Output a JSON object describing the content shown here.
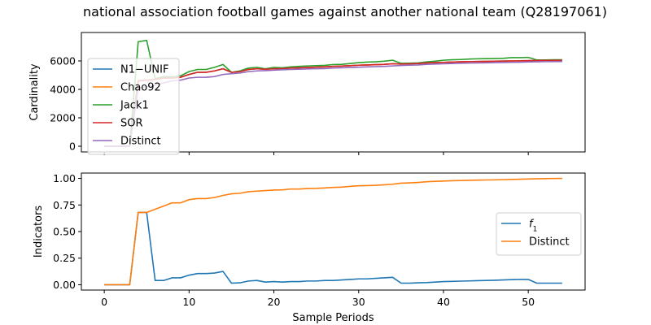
{
  "figure": {
    "title": "national association football games against another national team (Q28197061)",
    "xlabel": "Sample Periods"
  },
  "chart_data": [
    {
      "type": "line",
      "ylabel": "Cardinality",
      "xlim": [
        -2.7,
        56.7
      ],
      "ylim": [
        -400,
        8000
      ],
      "xticks": [
        0,
        10,
        20,
        30,
        40,
        50
      ],
      "yticks": [
        0,
        2000,
        4000,
        6000
      ],
      "legend": "upper-left",
      "x": [
        0,
        1,
        2,
        3,
        4,
        5,
        6,
        7,
        8,
        9,
        10,
        11,
        12,
        13,
        14,
        15,
        16,
        17,
        18,
        19,
        20,
        21,
        22,
        23,
        24,
        25,
        26,
        27,
        28,
        29,
        30,
        31,
        32,
        33,
        34,
        35,
        36,
        37,
        38,
        39,
        40,
        41,
        42,
        43,
        44,
        45,
        46,
        47,
        48,
        49,
        50,
        51,
        52,
        53,
        54
      ],
      "series": [
        {
          "name": "N1−UNIF",
          "color": "#1f77b4",
          "values": [
            0,
            0,
            0,
            0,
            4600,
            4650,
            4700,
            4800,
            4800,
            4850,
            5050,
            5200,
            5200,
            5300,
            5450,
            5200,
            5250,
            5400,
            5450,
            5420,
            5450,
            5460,
            5500,
            5520,
            5540,
            5560,
            5580,
            5620,
            5640,
            5670,
            5700,
            5720,
            5740,
            5760,
            5800,
            5780,
            5800,
            5820,
            5860,
            5880,
            5900,
            5920,
            5940,
            5950,
            5960,
            5970,
            5980,
            5990,
            6000,
            6010,
            6020,
            6030,
            6040,
            6040,
            6050
          ]
        },
        {
          "name": "Chao92",
          "color": "#ff7f0e",
          "values": [
            0,
            0,
            0,
            0,
            4600,
            4650,
            4700,
            4800,
            4800,
            4850,
            5050,
            5200,
            5200,
            5300,
            5450,
            5200,
            5250,
            5400,
            5450,
            5420,
            5450,
            5460,
            5500,
            5520,
            5540,
            5560,
            5580,
            5620,
            5640,
            5670,
            5700,
            5720,
            5740,
            5760,
            5800,
            5780,
            5800,
            5820,
            5860,
            5880,
            5900,
            5920,
            5940,
            5950,
            5960,
            5970,
            5980,
            5990,
            6000,
            6010,
            6020,
            6030,
            6040,
            6040,
            6050
          ]
        },
        {
          "name": "Jack1",
          "color": "#2ca02c",
          "values": [
            0,
            0,
            0,
            0,
            7350,
            7450,
            4750,
            4900,
            4900,
            4950,
            5250,
            5400,
            5400,
            5550,
            5750,
            5200,
            5300,
            5500,
            5550,
            5450,
            5550,
            5520,
            5580,
            5620,
            5650,
            5670,
            5690,
            5750,
            5760,
            5820,
            5880,
            5920,
            5940,
            5980,
            6050,
            5830,
            5840,
            5860,
            5930,
            5980,
            6050,
            6080,
            6100,
            6130,
            6150,
            6160,
            6170,
            6180,
            6230,
            6230,
            6250,
            6070,
            6070,
            6080,
            6080
          ]
        },
        {
          "name": "SOR",
          "color": "#d62728",
          "values": [
            0,
            0,
            0,
            0,
            4600,
            4650,
            4700,
            4800,
            4800,
            4850,
            5050,
            5200,
            5200,
            5300,
            5450,
            5200,
            5250,
            5400,
            5450,
            5420,
            5450,
            5460,
            5500,
            5520,
            5540,
            5560,
            5580,
            5620,
            5640,
            5670,
            5700,
            5720,
            5740,
            5760,
            5800,
            5780,
            5800,
            5820,
            5860,
            5880,
            5900,
            5920,
            5940,
            5950,
            5960,
            5970,
            5980,
            5990,
            6000,
            6010,
            6020,
            6030,
            6040,
            6040,
            6050
          ]
        },
        {
          "name": "Distinct",
          "color": "#9467bd",
          "values": [
            0,
            0,
            0,
            0,
            4100,
            4200,
            4300,
            4450,
            4600,
            4650,
            4800,
            4850,
            4850,
            4900,
            5050,
            5100,
            5150,
            5250,
            5300,
            5320,
            5350,
            5380,
            5400,
            5420,
            5440,
            5450,
            5460,
            5500,
            5520,
            5540,
            5560,
            5580,
            5600,
            5620,
            5650,
            5680,
            5700,
            5720,
            5760,
            5780,
            5800,
            5820,
            5840,
            5850,
            5860,
            5870,
            5880,
            5890,
            5900,
            5910,
            5930,
            5940,
            5950,
            5950,
            5960
          ]
        }
      ]
    },
    {
      "type": "line",
      "ylabel": "Indicators",
      "xlim": [
        -2.7,
        56.7
      ],
      "ylim": [
        -0.05,
        1.05
      ],
      "xticks": [
        0,
        10,
        20,
        30,
        40,
        50
      ],
      "yticks": [
        0.0,
        0.25,
        0.5,
        0.75,
        1.0
      ],
      "legend": "right",
      "x": [
        0,
        1,
        2,
        3,
        4,
        5,
        6,
        7,
        8,
        9,
        10,
        11,
        12,
        13,
        14,
        15,
        16,
        17,
        18,
        19,
        20,
        21,
        22,
        23,
        24,
        25,
        26,
        27,
        28,
        29,
        30,
        31,
        32,
        33,
        34,
        35,
        36,
        37,
        38,
        39,
        40,
        41,
        42,
        43,
        44,
        45,
        46,
        47,
        48,
        49,
        50,
        51,
        52,
        53,
        54
      ],
      "series": [
        {
          "name": "f1",
          "color": "#1f77b4",
          "values": [
            0,
            0,
            0,
            0,
            0.68,
            0.68,
            0.04,
            0.04,
            0.065,
            0.065,
            0.09,
            0.105,
            0.105,
            0.11,
            0.125,
            0.015,
            0.018,
            0.035,
            0.04,
            0.025,
            0.03,
            0.025,
            0.03,
            0.03,
            0.035,
            0.035,
            0.04,
            0.04,
            0.045,
            0.05,
            0.055,
            0.055,
            0.06,
            0.065,
            0.07,
            0.015,
            0.015,
            0.018,
            0.02,
            0.025,
            0.03,
            0.032,
            0.034,
            0.036,
            0.038,
            0.04,
            0.042,
            0.045,
            0.048,
            0.05,
            0.05,
            0.015,
            0.015,
            0.015,
            0.015
          ]
        },
        {
          "name": "Distinct",
          "color": "#ff7f0e",
          "values": [
            0,
            0,
            0,
            0,
            0.68,
            0.68,
            0.71,
            0.74,
            0.77,
            0.77,
            0.8,
            0.81,
            0.81,
            0.82,
            0.84,
            0.855,
            0.86,
            0.875,
            0.88,
            0.885,
            0.89,
            0.892,
            0.9,
            0.9,
            0.905,
            0.906,
            0.91,
            0.915,
            0.918,
            0.925,
            0.93,
            0.932,
            0.935,
            0.94,
            0.945,
            0.955,
            0.958,
            0.962,
            0.968,
            0.972,
            0.975,
            0.978,
            0.98,
            0.982,
            0.984,
            0.985,
            0.986,
            0.988,
            0.99,
            0.992,
            0.994,
            0.996,
            0.998,
            0.999,
            1.0
          ]
        }
      ]
    }
  ]
}
